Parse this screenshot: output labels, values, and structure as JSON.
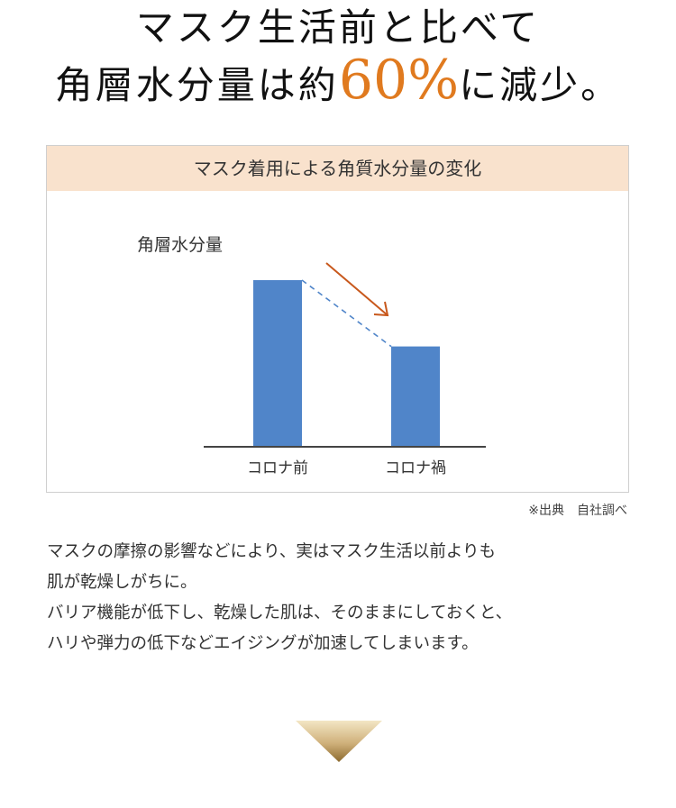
{
  "headline": {
    "line1": "マスク生活前と比べて",
    "line2_pre": "角層水分量は約",
    "line2_highlight": "60%",
    "line2_post": "に減少。",
    "highlight_color": "#e07a1f"
  },
  "chart_data": {
    "type": "bar",
    "title": "マスク着用による角質水分量の変化",
    "ylabel": "角層水分量",
    "xlabel": "",
    "categories": [
      "コロナ前",
      "コロナ禍"
    ],
    "values": [
      100,
      60
    ],
    "ylim": [
      0,
      100
    ],
    "bar_color": "#5085c9",
    "trend_arrow_color": "#c8581c",
    "grid": false
  },
  "source_note": "※出典　自社調べ",
  "body_lines": [
    "マスクの摩擦の影響などにより、実はマスク生活以前よりも",
    "肌が乾燥しがちに。",
    "バリア機能が低下し、乾燥した肌は、そのままにしておくと、",
    "ハリや弾力の低下などエイジングが加速してしまいます。"
  ],
  "next_icon": "down-triangle-icon"
}
